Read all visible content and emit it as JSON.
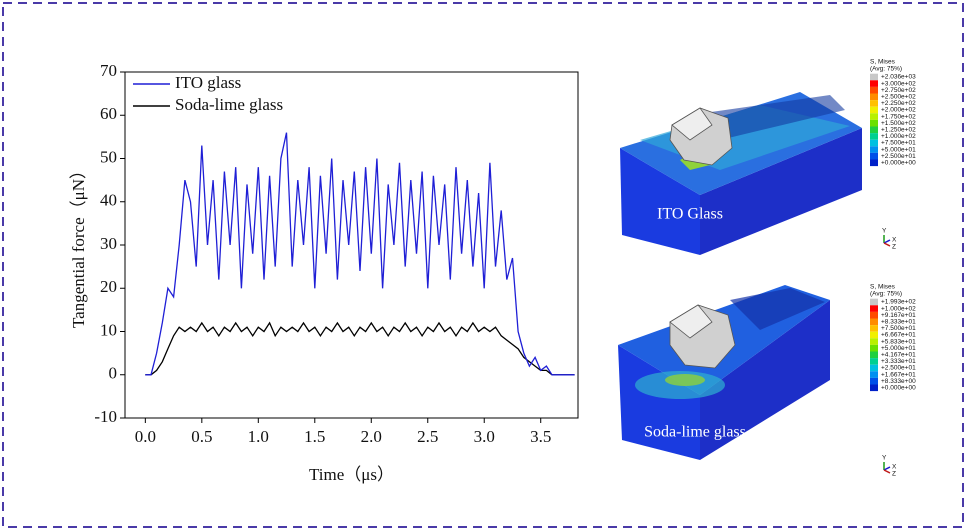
{
  "chart_data": {
    "type": "line",
    "x_label": "Time（μs）",
    "y_label": "Tangential force（μN）",
    "x": [
      0,
      0.05,
      0.1,
      0.15,
      0.2,
      0.25,
      0.3,
      0.35,
      0.4,
      0.45,
      0.5,
      0.55,
      0.6,
      0.65,
      0.7,
      0.75,
      0.8,
      0.85,
      0.9,
      0.95,
      1.0,
      1.05,
      1.1,
      1.15,
      1.2,
      1.25,
      1.3,
      1.35,
      1.4,
      1.45,
      1.5,
      1.55,
      1.6,
      1.65,
      1.7,
      1.75,
      1.8,
      1.85,
      1.9,
      1.95,
      2.0,
      2.05,
      2.1,
      2.15,
      2.2,
      2.25,
      2.3,
      2.35,
      2.4,
      2.45,
      2.5,
      2.55,
      2.6,
      2.65,
      2.7,
      2.75,
      2.8,
      2.85,
      2.9,
      2.95,
      3.0,
      3.05,
      3.1,
      3.15,
      3.2,
      3.25,
      3.3,
      3.35,
      3.4,
      3.45,
      3.5,
      3.55,
      3.6,
      3.7,
      3.8
    ],
    "series": [
      {
        "name": "ITO glass",
        "color": "#1f1fd6",
        "values": [
          0,
          0,
          5,
          12,
          20,
          18,
          30,
          45,
          40,
          25,
          53,
          30,
          45,
          22,
          47,
          30,
          48,
          20,
          44,
          28,
          48,
          22,
          46,
          25,
          50,
          56,
          25,
          45,
          30,
          48,
          20,
          46,
          28,
          50,
          22,
          45,
          30,
          47,
          24,
          48,
          28,
          50,
          20,
          44,
          30,
          49,
          25,
          45,
          28,
          47,
          20,
          46,
          30,
          44,
          22,
          48,
          28,
          45,
          25,
          42,
          20,
          49,
          25,
          38,
          22,
          27,
          10,
          5,
          2,
          4,
          1,
          2,
          0,
          0,
          0
        ]
      },
      {
        "name": "Soda-lime glass",
        "color": "#000000",
        "values": [
          0,
          0,
          1,
          3,
          6,
          9,
          11,
          10,
          11,
          10,
          12,
          10,
          11,
          9,
          11,
          10,
          12,
          10,
          11,
          9,
          11,
          10,
          12,
          9,
          11,
          10,
          11,
          10,
          12,
          10,
          11,
          9,
          11,
          10,
          12,
          10,
          11,
          9,
          11,
          10,
          12,
          10,
          11,
          9,
          11,
          10,
          12,
          10,
          11,
          9,
          11,
          10,
          12,
          10,
          11,
          9,
          11,
          10,
          12,
          10,
          11,
          10,
          11,
          9,
          8,
          7,
          6,
          4,
          3,
          2,
          1,
          1,
          0,
          0,
          0
        ]
      }
    ],
    "xlim": [
      -0.18,
      3.83
    ],
    "ylim": [
      -10,
      70
    ],
    "xticks": [
      {
        "value": 0,
        "label": "0.0"
      },
      0.5,
      {
        "value": 1,
        "label": "1.0"
      },
      1.5,
      {
        "value": 2,
        "label": "2.0"
      },
      2.5,
      {
        "value": 3,
        "label": "3.0"
      },
      3.5
    ],
    "yticks": [
      -10,
      0,
      10,
      20,
      30,
      40,
      50,
      60,
      70
    ],
    "legend": "upper left"
  },
  "panels": [
    {
      "label": "ITO Glass",
      "legend_title": "S, Mises",
      "legend_subtitle": "(Avg: 75%)",
      "levels": [
        "+2.036e+03",
        "+3.000e+02",
        "+2.750e+02",
        "+2.500e+02",
        "+2.250e+02",
        "+2.000e+02",
        "+1.750e+02",
        "+1.500e+02",
        "+1.250e+02",
        "+1.000e+02",
        "+7.500e+01",
        "+5.000e+01",
        "+2.500e+01",
        "+0.000e+00"
      ],
      "axes": [
        "Y",
        "X",
        "Z"
      ]
    },
    {
      "label": "Soda-lime glass",
      "legend_title": "S, Mises",
      "legend_subtitle": "(Avg: 75%)",
      "levels": [
        "+1.993e+02",
        "+1.000e+02",
        "+9.167e+01",
        "+8.333e+01",
        "+7.500e+01",
        "+6.667e+01",
        "+5.833e+01",
        "+5.000e+01",
        "+4.167e+01",
        "+3.333e+01",
        "+2.500e+01",
        "+1.667e+01",
        "+8.333e+00",
        "+0.000e+00"
      ],
      "axes": [
        "Y",
        "X",
        "Z"
      ]
    }
  ]
}
